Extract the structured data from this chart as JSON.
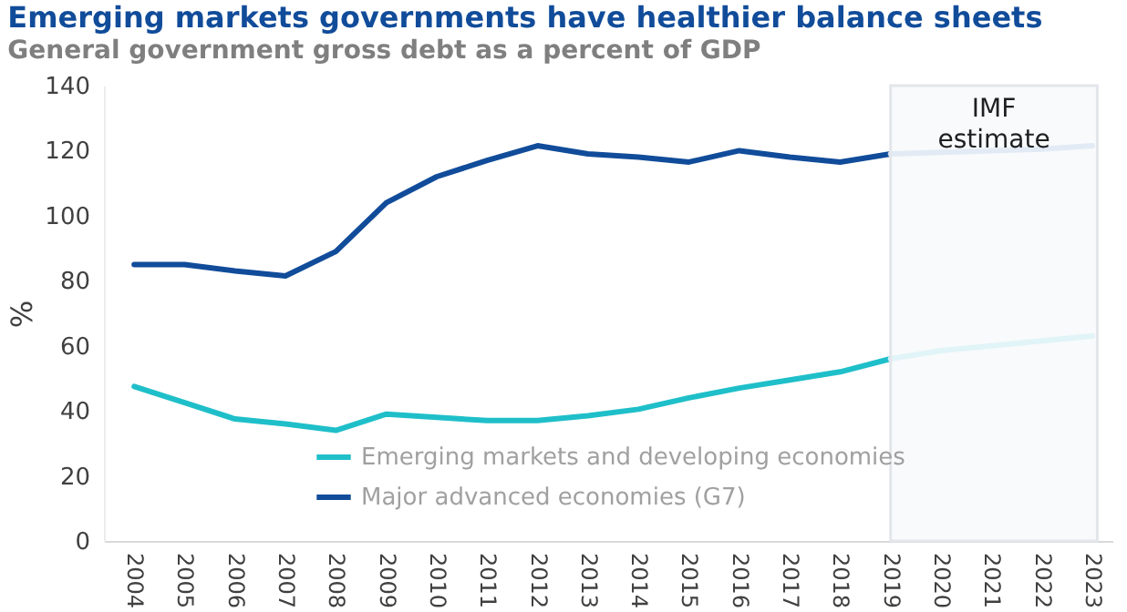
{
  "chart_data": {
    "type": "line",
    "title": "Emerging markets governments have healthier balance sheets",
    "subtitle": "General government gross debt as a percent of GDP",
    "ylabel": "%",
    "categories": [
      "2004",
      "2005",
      "2006",
      "2007",
      "2008",
      "2009",
      "2010",
      "2011",
      "2012",
      "2013",
      "2014",
      "2015",
      "2016",
      "2017",
      "2018",
      "2019",
      "2020",
      "2021",
      "2022",
      "2023"
    ],
    "series": [
      {
        "name": "Emerging markets and developing economies",
        "color": "#1fbfc9",
        "values": [
          47.5,
          42.5,
          37.5,
          36,
          34,
          39,
          38,
          37,
          37,
          38.5,
          40.5,
          44,
          47,
          49.5,
          52,
          56,
          null,
          null,
          null,
          null
        ]
      },
      {
        "name": "Major advanced economies (G7)",
        "color": "#114c9a",
        "values": [
          85,
          85,
          83,
          81.5,
          89,
          104,
          112,
          117,
          121.5,
          119,
          118,
          116.5,
          120,
          118,
          116.5,
          119,
          null,
          null,
          null,
          null
        ]
      },
      {
        "color": "#c6f1f6",
        "values": [
          null,
          null,
          null,
          null,
          null,
          null,
          null,
          null,
          null,
          null,
          null,
          null,
          null,
          null,
          null,
          56,
          58.5,
          60,
          61.5,
          63
        ]
      },
      {
        "color": "#c8d9f0",
        "values": [
          null,
          null,
          null,
          null,
          null,
          null,
          null,
          null,
          null,
          null,
          null,
          null,
          null,
          null,
          null,
          119,
          119.5,
          120,
          120.5,
          121.5
        ]
      }
    ],
    "ylim": [
      0,
      140
    ],
    "yticks": [
      0,
      20,
      40,
      60,
      80,
      100,
      120,
      140
    ],
    "grid": false,
    "legend": "bottom left",
    "marker": "none",
    "line_style": "solid",
    "bands": [
      {
        "axis": "x",
        "from": "2019",
        "to": "2023",
        "label": "IMF estimate",
        "color": "#e3e6ea"
      }
    ]
  }
}
